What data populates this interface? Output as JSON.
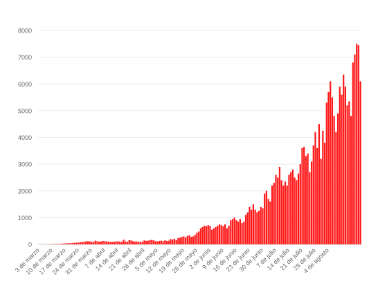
{
  "chart_data": {
    "type": "bar",
    "title": "",
    "xlabel": "",
    "ylabel": "",
    "ylim": [
      0,
      8000
    ],
    "y_ticks": [
      0,
      1000,
      2000,
      3000,
      4000,
      5000,
      6000,
      7000,
      8000
    ],
    "grid": true,
    "bar_color": "#ff1a1a",
    "x_tick_labels": [
      "3 de marzo",
      "10 de marzo",
      "17 de marzo",
      "24 de marzo",
      "31 de marzo",
      "7 de abril",
      "14 de abril",
      "21 de abril",
      "28 de abril",
      "5 de mayo",
      "12 de mayo",
      "19 de mayo",
      "26 de mayo",
      "2 de junio",
      "9 de junio",
      "16 de junio",
      "23 de junio",
      "30 de junio",
      "7 de julio",
      "14 de julio",
      "21 de julio",
      "28 de julio",
      "4 de agosto"
    ],
    "series": [
      {
        "start_label": "3 de marzo",
        "interval": "1 day",
        "values": [
          1,
          2,
          2,
          3,
          5,
          6,
          8,
          10,
          12,
          15,
          18,
          20,
          25,
          30,
          35,
          40,
          45,
          50,
          55,
          60,
          65,
          70,
          80,
          90,
          100,
          110,
          120,
          110,
          100,
          90,
          140,
          120,
          100,
          110,
          130,
          120,
          110,
          100,
          95,
          90,
          100,
          110,
          120,
          100,
          90,
          175,
          110,
          95,
          160,
          150,
          120,
          100,
          110,
          100,
          90,
          100,
          150,
          130,
          140,
          160,
          170,
          150,
          120,
          110,
          130,
          140,
          120,
          150,
          130,
          140,
          200,
          180,
          210,
          160,
          230,
          250,
          280,
          300,
          260,
          320,
          340,
          280,
          300,
          360,
          440,
          480,
          600,
          650,
          700,
          680,
          720,
          690,
          550,
          600,
          650,
          700,
          750,
          720,
          680,
          750,
          600,
          700,
          900,
          950,
          1000,
          900,
          850,
          950,
          800,
          850,
          1100,
          1200,
          1400,
          1300,
          1500,
          1300,
          1200,
          1250,
          1400,
          1350,
          1900,
          2000,
          1700,
          1600,
          2200,
          2300,
          2600,
          2500,
          2900,
          2400,
          2200,
          2350,
          2200,
          2600,
          2700,
          2800,
          2500,
          2400,
          2650,
          3000,
          3600,
          3650,
          3300,
          3400,
          2700,
          3100,
          3700,
          4200,
          3600,
          4500,
          3200,
          4250,
          3800,
          5300,
          5700,
          6100,
          5500,
          4800,
          4200,
          4900,
          5900,
          5600,
          6350,
          5900,
          5200,
          5350,
          4800,
          6800,
          7100,
          7500,
          7450,
          6100
        ]
      }
    ]
  }
}
